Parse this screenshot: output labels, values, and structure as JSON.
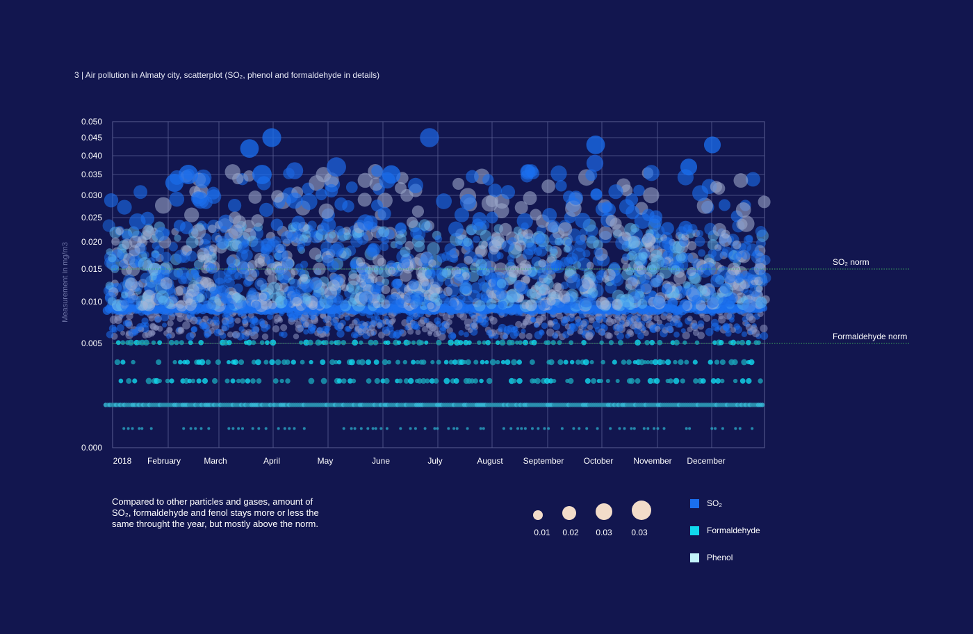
{
  "title": "3 | Air pollution in Almaty city, scatterplot (SO₂, phenol and formaldehyde in details)",
  "note": [
    "Compared to other particles and gases, amount of",
    "SO₂, formaldehyde and fenol stays more or less the",
    "same throught the year, but mostly above the norm."
  ],
  "size_legend": {
    "labels": [
      "0.01",
      "0.02",
      "0.03",
      "0.03"
    ]
  },
  "colors": {
    "background": "#12164f",
    "so2": "#1a6ff0",
    "formaldehyde": "#11d9ee",
    "phenol": "#c3f4fb",
    "norm_line": "#3fae5e",
    "grid": "#5a5f93"
  },
  "color_legend": [
    {
      "label": "SO₂",
      "color": "#1a6ff0"
    },
    {
      "label": "Formaldehyde",
      "color": "#11d9ee"
    },
    {
      "label": "Phenol",
      "color": "#c3f4fb"
    }
  ],
  "chart_data": {
    "type": "scatter",
    "title": "3 | Air pollution in Almaty city, scatterplot (SO₂, phenol and formaldehyde in details)",
    "ylabel": "Measurement in mg/m3",
    "xlabel": "",
    "x_ticks": [
      "2018",
      "February",
      "March",
      "April",
      "May",
      "June",
      "July",
      "August",
      "September",
      "October",
      "November",
      "December"
    ],
    "y_ticks": [
      "0.050",
      "0.045",
      "0.040",
      "0.035",
      "0.030",
      "0.025",
      "0.020",
      "0.015",
      "0.010",
      "0.005",
      "0.000"
    ],
    "ylim": [
      0,
      0.05
    ],
    "y_scale": "nonlinear (compressed toward zero)",
    "grid": true,
    "norms": [
      {
        "label": "SO₂ norm",
        "value": 0.015
      },
      {
        "label": "Formaldehyde norm",
        "value": 0.005
      }
    ],
    "series": [
      {
        "name": "SO₂",
        "color": "#1a6ff0",
        "typical_range": [
          0.006,
          0.045
        ],
        "band_values": [
          0.009,
          0.012,
          0.015,
          0.018,
          0.022
        ]
      },
      {
        "name": "Formaldehyde",
        "color": "#11d9ee",
        "typical_range": [
          0.003,
          0.006
        ],
        "band_values": [
          0.005,
          0.004,
          0.003
        ]
      },
      {
        "name": "Phenol",
        "color": "#c3f4fb",
        "typical_range": [
          0.001,
          0.026
        ],
        "band_values": [
          0.002,
          0.001
        ]
      }
    ],
    "highlights": [
      {
        "month": "March",
        "value": 0.042
      },
      {
        "month": "April",
        "value": 0.045
      },
      {
        "month": "May",
        "value": 0.037
      },
      {
        "month": "July",
        "value": 0.045
      },
      {
        "month": "October",
        "value": 0.043
      },
      {
        "month": "December",
        "value": 0.043
      }
    ]
  }
}
